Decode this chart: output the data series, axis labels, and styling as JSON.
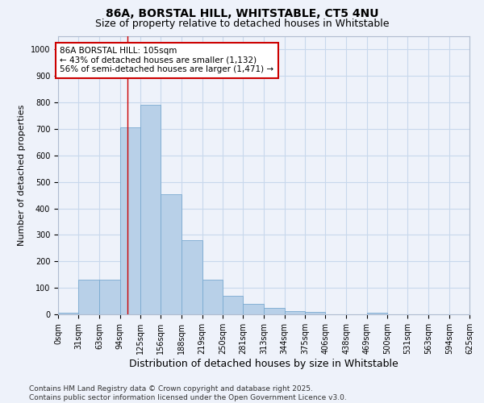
{
  "title1": "86A, BORSTAL HILL, WHITSTABLE, CT5 4NU",
  "title2": "Size of property relative to detached houses in Whitstable",
  "xlabel": "Distribution of detached houses by size in Whitstable",
  "ylabel": "Number of detached properties",
  "bins": [
    0,
    31,
    63,
    94,
    125,
    156,
    188,
    219,
    250,
    281,
    313,
    344,
    375,
    406,
    438,
    469,
    500,
    531,
    563,
    594,
    625
  ],
  "bar_values": [
    5,
    130,
    130,
    705,
    790,
    455,
    280,
    130,
    70,
    40,
    23,
    12,
    9,
    1,
    0,
    5,
    0,
    0,
    0,
    0
  ],
  "bar_color": "#b8d0e8",
  "bar_edge_color": "#7aaad0",
  "grid_color": "#c8d8ec",
  "background_color": "#eef2fa",
  "property_size": 105,
  "vline_color": "#cc0000",
  "annotation_text": "86A BORSTAL HILL: 105sqm\n← 43% of detached houses are smaller (1,132)\n56% of semi-detached houses are larger (1,471) →",
  "annotation_box_facecolor": "#ffffff",
  "annotation_box_edgecolor": "#cc0000",
  "ylim": [
    0,
    1050
  ],
  "yticks": [
    0,
    100,
    200,
    300,
    400,
    500,
    600,
    700,
    800,
    900,
    1000
  ],
  "tick_labels": [
    "0sqm",
    "31sqm",
    "63sqm",
    "94sqm",
    "125sqm",
    "156sqm",
    "188sqm",
    "219sqm",
    "250sqm",
    "281sqm",
    "313sqm",
    "344sqm",
    "375sqm",
    "406sqm",
    "438sqm",
    "469sqm",
    "500sqm",
    "531sqm",
    "563sqm",
    "594sqm",
    "625sqm"
  ],
  "footer_text": "Contains HM Land Registry data © Crown copyright and database right 2025.\nContains public sector information licensed under the Open Government Licence v3.0.",
  "title1_fontsize": 10,
  "title2_fontsize": 9,
  "xlabel_fontsize": 9,
  "ylabel_fontsize": 8,
  "tick_fontsize": 7,
  "annotation_fontsize": 7.5,
  "footer_fontsize": 6.5
}
